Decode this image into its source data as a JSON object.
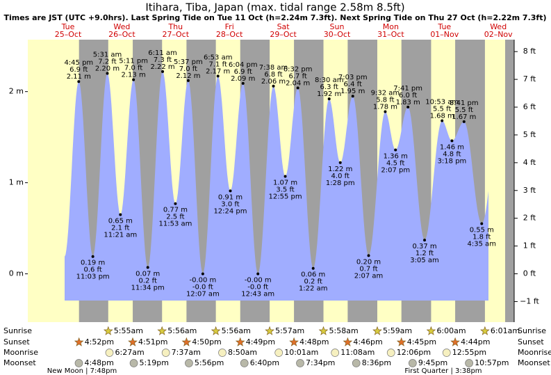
{
  "title": "Itihara, Tiba, Japan (max. tidal range 2.58m 8.5ft)",
  "subtitle": "Times are JST (UTC +9.0hrs). Last Spring Tide on Tue 11 Oct (h=2.24m 7.3ft). Next Spring Tide on Thu 27 Oct (h=2.22m 7.3ft)",
  "chart_data": {
    "type": "tide",
    "ylim": [
      -0.53,
      2.57
    ],
    "yticks": [
      {
        "value": 0,
        "label": "0 m"
      },
      {
        "value": 1,
        "label": "1 m"
      },
      {
        "value": 2,
        "label": "2 m"
      }
    ],
    "y2lim": [
      -1.74,
      8.43
    ],
    "y2ticks": [
      {
        "value": -1,
        "label": "−1 ft"
      },
      {
        "value": 0,
        "label": "0 ft"
      },
      {
        "value": 1,
        "label": "1 ft"
      },
      {
        "value": 2,
        "label": "2 ft"
      },
      {
        "value": 3,
        "label": "3 ft"
      },
      {
        "value": 4,
        "label": "4 ft"
      },
      {
        "value": 5,
        "label": "5 ft"
      },
      {
        "value": 6,
        "label": "6 ft"
      },
      {
        "value": 7,
        "label": "7 ft"
      },
      {
        "value": 8,
        "label": "8 ft"
      }
    ],
    "fill_color": "#a0adff",
    "days": [
      {
        "weekday": "Tue",
        "date": "25–Oct",
        "tides": [
          {
            "time": "4:45 pm",
            "height": 2.11,
            "height_label": "2.11 m",
            "feet": 6.9,
            "feet_label": "6.9 ft"
          },
          {
            "time": "11:03 pm",
            "height": 0.19,
            "height_label": "0.19 m",
            "feet": 0.6,
            "feet_label": "0.6 ft"
          }
        ]
      },
      {
        "weekday": "Wed",
        "date": "26–Oct",
        "tides": [
          {
            "time": "5:31 am",
            "height": 2.2,
            "height_label": "2.20 m",
            "feet": 7.2,
            "feet_label": "7.2 ft"
          },
          {
            "time": "11:21 am",
            "height": 0.65,
            "height_label": "0.65 m",
            "feet": 2.1,
            "feet_label": "2.1 ft"
          },
          {
            "time": "5:11 pm",
            "height": 2.13,
            "height_label": "2.13 m",
            "feet": 7.0,
            "feet_label": "7.0 ft"
          },
          {
            "time": "11:34 pm",
            "height": 0.07,
            "height_label": "0.07 m",
            "feet": 0.2,
            "feet_label": "0.2 ft"
          }
        ]
      },
      {
        "weekday": "Thu",
        "date": "27–Oct",
        "tides": [
          {
            "time": "6:11 am",
            "height": 2.22,
            "height_label": "2.22 m",
            "feet": 7.3,
            "feet_label": "7.3 ft"
          },
          {
            "time": "11:53 am",
            "height": 0.77,
            "height_label": "0.77 m",
            "feet": 2.5,
            "feet_label": "2.5 ft"
          },
          {
            "time": "5:37 pm",
            "height": 2.12,
            "height_label": "2.12 m",
            "feet": 7.0,
            "feet_label": "7.0 ft"
          }
        ]
      },
      {
        "weekday": "Fri",
        "date": "28–Oct",
        "tides": [
          {
            "time": "12:07 am",
            "height": 0,
            "height_label": "-0.00 m",
            "feet": 0,
            "feet_label": "-0.0 ft"
          },
          {
            "time": "6:53 am",
            "height": 2.17,
            "height_label": "2.17 m",
            "feet": 7.1,
            "feet_label": "7.1 ft"
          },
          {
            "time": "12:24 pm",
            "height": 0.91,
            "height_label": "0.91 m",
            "feet": 3.0,
            "feet_label": "3.0 ft"
          },
          {
            "time": "6:04 pm",
            "height": 2.09,
            "height_label": "2.09 m",
            "feet": 6.9,
            "feet_label": "6.9 ft"
          }
        ]
      },
      {
        "weekday": "Sat",
        "date": "29–Oct",
        "tides": [
          {
            "time": "12:43 am",
            "height": 0,
            "height_label": "-0.00 m",
            "feet": 0,
            "feet_label": "-0.0 ft"
          },
          {
            "time": "7:38 am",
            "height": 2.06,
            "height_label": "2.06 m",
            "feet": 6.8,
            "feet_label": "6.8 ft"
          },
          {
            "time": "12:55 pm",
            "height": 1.07,
            "height_label": "1.07 m",
            "feet": 3.5,
            "feet_label": "3.5 ft"
          },
          {
            "time": "6:32 pm",
            "height": 2.04,
            "height_label": "2.04 m",
            "feet": 6.7,
            "feet_label": "6.7 ft"
          }
        ]
      },
      {
        "weekday": "Sun",
        "date": "30–Oct",
        "tides": [
          {
            "time": "1:22 am",
            "height": 0.06,
            "height_label": "0.06 m",
            "feet": 0.2,
            "feet_label": "0.2 ft"
          },
          {
            "time": "8:30 am",
            "height": 1.92,
            "height_label": "1.92 m",
            "feet": 6.3,
            "feet_label": "6.3 ft"
          },
          {
            "time": "1:28 pm",
            "height": 1.22,
            "height_label": "1.22 m",
            "feet": 4.0,
            "feet_label": "4.0 ft"
          },
          {
            "time": "7:03 pm",
            "height": 1.95,
            "height_label": "1.95 m",
            "feet": 6.4,
            "feet_label": "6.4 ft"
          }
        ]
      },
      {
        "weekday": "Mon",
        "date": "31–Oct",
        "tides": [
          {
            "time": "2:07 am",
            "height": 0.2,
            "height_label": "0.20 m",
            "feet": 0.7,
            "feet_label": "0.7 ft"
          },
          {
            "time": "9:32 am",
            "height": 1.78,
            "height_label": "1.78 m",
            "feet": 5.8,
            "feet_label": "5.8 ft"
          },
          {
            "time": "2:07 pm",
            "height": 1.36,
            "height_label": "1.36 m",
            "feet": 4.5,
            "feet_label": "4.5 ft"
          },
          {
            "time": "7:41 pm",
            "height": 1.83,
            "height_label": "1.83 m",
            "feet": 6.0,
            "feet_label": "6.0 ft"
          }
        ]
      },
      {
        "weekday": "Tue",
        "date": "01–Nov",
        "tides": [
          {
            "time": "3:05 am",
            "height": 0.37,
            "height_label": "0.37 m",
            "feet": 1.2,
            "feet_label": "1.2 ft"
          },
          {
            "time": "10:53 am",
            "height": 1.68,
            "height_label": "1.68 m",
            "feet": 5.5,
            "feet_label": "5.5 ft"
          },
          {
            "time": "3:18 pm",
            "height": 1.46,
            "height_label": "1.46 m",
            "feet": 4.8,
            "feet_label": "4.8 ft"
          },
          {
            "time": "8:41 pm",
            "height": 1.67,
            "height_label": "1.67 m",
            "feet": 5.5,
            "feet_label": "5.5 ft"
          }
        ]
      },
      {
        "weekday": "Wed",
        "date": "02–Nov",
        "tides": [
          {
            "time": "4:35 am",
            "height": 0.55,
            "height_label": "0.55 m",
            "feet": 1.8,
            "feet_label": "1.8 ft"
          }
        ]
      }
    ]
  },
  "almanac": {
    "labels": [
      "Sunrise",
      "Sunset",
      "Moonrise",
      "Moonset"
    ],
    "rows": [
      [
        null,
        "5:55am",
        "5:56am",
        "5:56am",
        "5:57am",
        "5:58am",
        "5:59am",
        "6:00am",
        "6:01am"
      ],
      [
        "4:52pm",
        "4:51pm",
        "4:50pm",
        "4:49pm",
        "4:48pm",
        "4:46pm",
        "4:45pm",
        "4:44pm",
        null
      ],
      [
        null,
        "6:27am",
        "7:37am",
        "8:50am",
        "10:01am",
        "11:08am",
        "12:06pm",
        "12:55pm",
        null
      ],
      [
        "4:48pm",
        "5:19pm",
        "5:56pm",
        "6:40pm",
        "7:34pm",
        "8:36pm",
        "9:45pm",
        "10:57pm",
        null
      ]
    ]
  },
  "moon_phases": [
    "New Moon | 7:48pm",
    "First Quarter | 3:38pm"
  ]
}
